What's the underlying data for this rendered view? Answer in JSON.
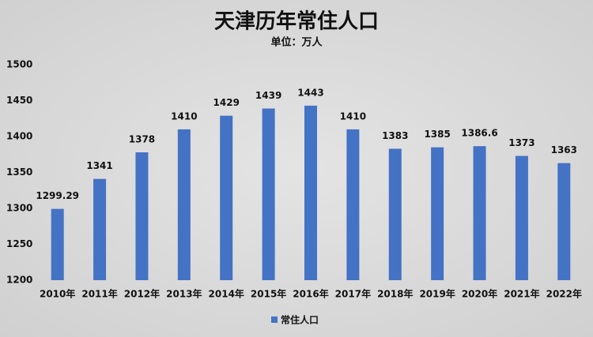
{
  "chart_data": {
    "type": "bar",
    "title": "天津历年常住人口",
    "subtitle": "单位：万人",
    "categories": [
      "2010年",
      "2011年",
      "2012年",
      "2013年",
      "2014年",
      "2015年",
      "2016年",
      "2017年",
      "2018年",
      "2019年",
      "2020年",
      "2021年",
      "2022年"
    ],
    "series": [
      {
        "name": "常住人口",
        "color": "#4472c4",
        "values": [
          1299.29,
          1341,
          1378,
          1410,
          1429,
          1439,
          1443,
          1410,
          1383,
          1385,
          1386.6,
          1373,
          1363
        ]
      }
    ],
    "ylim": [
      1200,
      1500
    ],
    "yticks": [
      1200,
      1250,
      1300,
      1350,
      1400,
      1450,
      1500
    ],
    "grid": false,
    "legend": "bottom"
  }
}
